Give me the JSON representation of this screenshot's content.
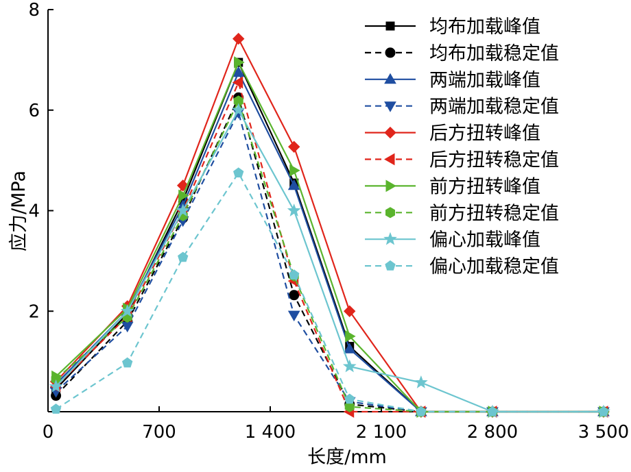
{
  "chart_data": {
    "type": "line",
    "title": "",
    "xlabel": "长度/mm",
    "ylabel": "应力/MPa",
    "xlim": [
      0,
      3500
    ],
    "ylim": [
      0,
      8
    ],
    "xticks": [
      0,
      700,
      1400,
      2100,
      2800,
      3500
    ],
    "xtick_labels": [
      "0",
      "700",
      "1 400",
      "2 100",
      "2 800",
      "3 500"
    ],
    "yticks": [
      2,
      4,
      6,
      8
    ],
    "ytick_labels": [
      "2",
      "4",
      "6",
      "8"
    ],
    "grid": false,
    "legend_position": "top-right",
    "x": [
      50,
      500,
      850,
      1200,
      1550,
      1900,
      2350,
      2800,
      3500
    ],
    "series": [
      {
        "name": "均布加载峰值",
        "color": "#000000",
        "dashed": false,
        "marker": "square",
        "values": [
          0.45,
          1.95,
          4.2,
          6.95,
          4.55,
          1.3,
          0.0,
          0.0,
          0.0
        ]
      },
      {
        "name": "均布加载稳定值",
        "color": "#000000",
        "dashed": true,
        "marker": "circle",
        "values": [
          0.32,
          1.8,
          3.85,
          6.25,
          2.32,
          0.15,
          0.0,
          0.0,
          0.0
        ]
      },
      {
        "name": "两端加载峰值",
        "color": "#1f4ea1",
        "dashed": false,
        "marker": "triangle-up",
        "values": [
          0.55,
          2.0,
          4.1,
          6.75,
          4.5,
          1.25,
          0.0,
          0.0,
          0.0
        ]
      },
      {
        "name": "两端加载稳定值",
        "color": "#1f4ea1",
        "dashed": true,
        "marker": "triangle-down",
        "values": [
          0.4,
          1.7,
          3.8,
          5.95,
          1.92,
          0.2,
          0.0,
          0.0,
          0.0
        ]
      },
      {
        "name": "后方扭转峰值",
        "color": "#e0251b",
        "dashed": false,
        "marker": "diamond",
        "values": [
          0.6,
          2.1,
          4.5,
          7.42,
          5.27,
          2.0,
          0.0,
          0.0,
          0.0
        ]
      },
      {
        "name": "后方扭转稳定值",
        "color": "#e0251b",
        "dashed": true,
        "marker": "triangle-left",
        "values": [
          0.5,
          1.9,
          4.0,
          6.55,
          2.6,
          0.0,
          0.0,
          0.0,
          0.0
        ]
      },
      {
        "name": "前方扭转峰值",
        "color": "#5ab42d",
        "dashed": false,
        "marker": "triangle-right",
        "values": [
          0.7,
          2.05,
          4.3,
          6.95,
          4.8,
          1.5,
          0.0,
          0.0,
          0.0
        ]
      },
      {
        "name": "前方扭转稳定值",
        "color": "#5ab42d",
        "dashed": true,
        "marker": "hexagon",
        "values": [
          0.65,
          1.88,
          3.9,
          6.18,
          2.7,
          0.1,
          0.0,
          0.0,
          0.0
        ]
      },
      {
        "name": "偏心加载峰值",
        "color": "#6cc5cf",
        "dashed": false,
        "marker": "star",
        "values": [
          0.5,
          2.0,
          4.0,
          6.0,
          4.0,
          0.9,
          0.58,
          0.0,
          0.0
        ]
      },
      {
        "name": "偏心加载稳定值",
        "color": "#6cc5cf",
        "dashed": true,
        "marker": "pentagon",
        "values": [
          0.05,
          0.97,
          3.07,
          4.75,
          2.72,
          0.25,
          0.0,
          0.0,
          0.0
        ]
      }
    ]
  }
}
